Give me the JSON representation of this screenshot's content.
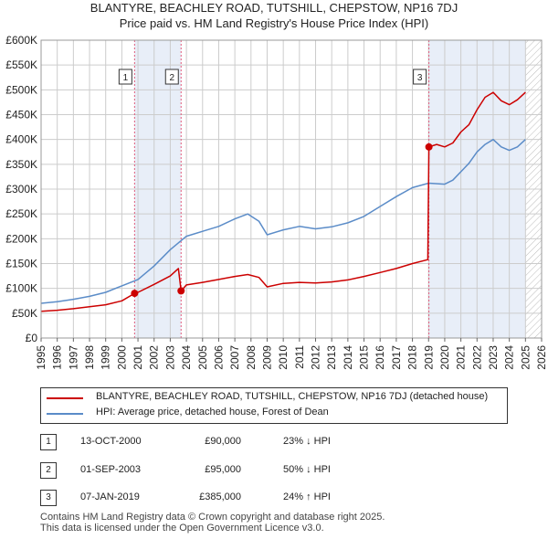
{
  "title_line1": "BLANTYRE, BEACHLEY ROAD, TUTSHILL, CHEPSTOW, NP16 7DJ",
  "title_line2": "Price paid vs. HM Land Registry's House Price Index (HPI)",
  "colors": {
    "property": "#cc0000",
    "hpi": "#5b8cc8",
    "shade": "#e8eef8",
    "grid": "#cccccc",
    "marker_line": "#e05a7a"
  },
  "legend": {
    "property_label": "BLANTYRE, BEACHLEY ROAD, TUTSHILL, CHEPSTOW, NP16 7DJ (detached house)",
    "hpi_label": "HPI: Average price, detached house, Forest of Dean"
  },
  "transactions": [
    {
      "num": "1",
      "date": "13-OCT-2000",
      "price": "£90,000",
      "hpi": "23% ↓ HPI"
    },
    {
      "num": "2",
      "date": "01-SEP-2003",
      "price": "£95,000",
      "hpi": "50% ↓ HPI"
    },
    {
      "num": "3",
      "date": "07-JAN-2019",
      "price": "£385,000",
      "hpi": "24% ↑ HPI"
    }
  ],
  "footer_line1": "Contains HM Land Registry data © Crown copyright and database right 2025.",
  "footer_line2": "This data is licensed under the Open Government Licence v3.0.",
  "chart_data": {
    "type": "line",
    "x_range": [
      1995,
      2026
    ],
    "ylim": [
      0,
      600000
    ],
    "y_ticks": [
      0,
      50000,
      100000,
      150000,
      200000,
      250000,
      300000,
      350000,
      400000,
      450000,
      500000,
      550000,
      600000
    ],
    "y_tick_labels": [
      "£0",
      "£50K",
      "£100K",
      "£150K",
      "£200K",
      "£250K",
      "£300K",
      "£350K",
      "£400K",
      "£450K",
      "£500K",
      "£550K",
      "£600K"
    ],
    "x_ticks": [
      1995,
      1996,
      1997,
      1998,
      1999,
      2000,
      2001,
      2002,
      2003,
      2004,
      2005,
      2006,
      2007,
      2008,
      2009,
      2010,
      2011,
      2012,
      2013,
      2014,
      2015,
      2016,
      2017,
      2018,
      2019,
      2020,
      2021,
      2022,
      2023,
      2024,
      2025,
      2026
    ],
    "shaded_ranges": [
      [
        2000.79,
        2003.67
      ],
      [
        2019.02,
        2025.0
      ]
    ],
    "hatched_from": 2025.0,
    "sale_markers": [
      {
        "label": "1",
        "x": 2000.79,
        "y": 90000
      },
      {
        "label": "2",
        "x": 2003.67,
        "y": 95000
      },
      {
        "label": "3",
        "x": 2019.02,
        "y": 385000
      }
    ],
    "series": [
      {
        "name": "BLANTYRE, BEACHLEY ROAD, TUTSHILL, CHEPSTOW, NP16 7DJ (detached house)",
        "x": [
          1995,
          1996,
          1997,
          1998,
          1999,
          2000,
          2000.79,
          2001,
          2002,
          2003,
          2003.5,
          2003.67,
          2004,
          2005,
          2006,
          2007,
          2007.8,
          2008.5,
          2009,
          2010,
          2011,
          2012,
          2013,
          2014,
          2015,
          2016,
          2017,
          2018,
          2018.95,
          2019.02,
          2019.5,
          2020,
          2020.5,
          2021,
          2021.5,
          2022,
          2022.5,
          2023,
          2023.5,
          2024,
          2024.5,
          2025
        ],
        "y": [
          54000,
          56000,
          59000,
          63000,
          67000,
          75000,
          90000,
          92000,
          108000,
          125000,
          140000,
          95000,
          107000,
          112000,
          118000,
          124000,
          128000,
          122000,
          103000,
          110000,
          112000,
          111000,
          113000,
          117000,
          124000,
          132000,
          140000,
          150000,
          158000,
          385000,
          390000,
          385000,
          393000,
          415000,
          430000,
          460000,
          485000,
          495000,
          478000,
          470000,
          480000,
          495000
        ]
      },
      {
        "name": "HPI: Average price, detached house, Forest of Dean",
        "x": [
          1995,
          1996,
          1997,
          1998,
          1999,
          2000,
          2001,
          2002,
          2003,
          2004,
          2005,
          2006,
          2007,
          2007.8,
          2008.5,
          2009,
          2010,
          2011,
          2012,
          2013,
          2014,
          2015,
          2016,
          2017,
          2018,
          2019,
          2020,
          2020.5,
          2021,
          2021.5,
          2022,
          2022.5,
          2023,
          2023.5,
          2024,
          2024.5,
          2025
        ],
        "y": [
          70000,
          73000,
          78000,
          84000,
          92000,
          105000,
          118000,
          145000,
          178000,
          205000,
          215000,
          225000,
          240000,
          250000,
          235000,
          208000,
          218000,
          225000,
          220000,
          224000,
          232000,
          245000,
          265000,
          285000,
          303000,
          312000,
          310000,
          318000,
          335000,
          352000,
          375000,
          390000,
          400000,
          385000,
          378000,
          385000,
          400000
        ]
      }
    ],
    "xlabel": "",
    "ylabel": ""
  }
}
